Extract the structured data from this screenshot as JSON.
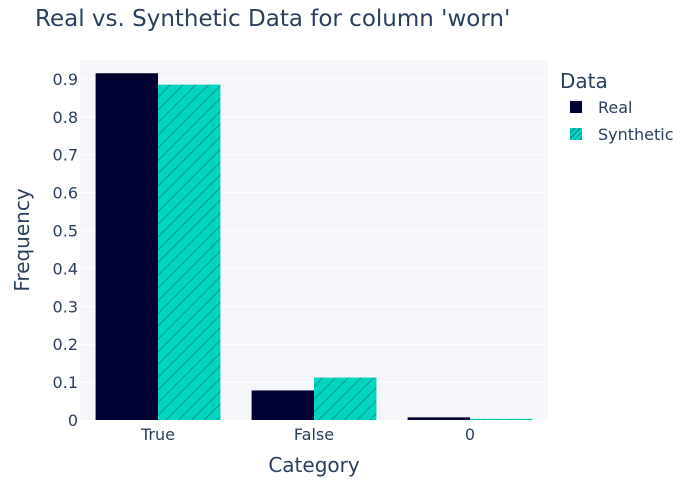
{
  "chart_data": {
    "type": "bar",
    "title": "Real vs. Synthetic Data for column 'worn'",
    "xlabel": "Category",
    "ylabel": "Frequency",
    "categories": [
      "True",
      "False",
      "0"
    ],
    "series": [
      {
        "name": "Real",
        "values": [
          0.915,
          0.078,
          0.007
        ],
        "color": "#000033",
        "pattern": "solid"
      },
      {
        "name": "Synthetic",
        "values": [
          0.885,
          0.112,
          0.003
        ],
        "color": "#00d5c0",
        "pattern": "diagonal-hatch"
      }
    ],
    "ylim": [
      0,
      0.95
    ],
    "yticks": [
      "0",
      "0.1",
      "0.2",
      "0.3",
      "0.4",
      "0.5",
      "0.6",
      "0.7",
      "0.8",
      "0.9"
    ],
    "grid": true,
    "legend": {
      "title": "Data",
      "placement": "top-right"
    },
    "colors": {
      "plot_bg": "#f5f6f9",
      "grid": "#ffffff",
      "text": "#2a3f5f"
    }
  }
}
